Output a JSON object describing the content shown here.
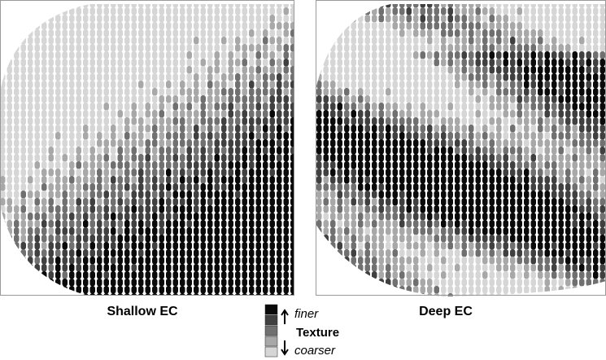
{
  "panels": [
    {
      "label": "Shallow EC"
    },
    {
      "label": "Deep EC"
    }
  ],
  "legend": {
    "finer": "finer",
    "title": "Texture",
    "coarser": "coarser",
    "colors": [
      "#0a0a0a",
      "#404040",
      "#707070",
      "#a8a8a8",
      "#d6d6d6"
    ]
  }
}
